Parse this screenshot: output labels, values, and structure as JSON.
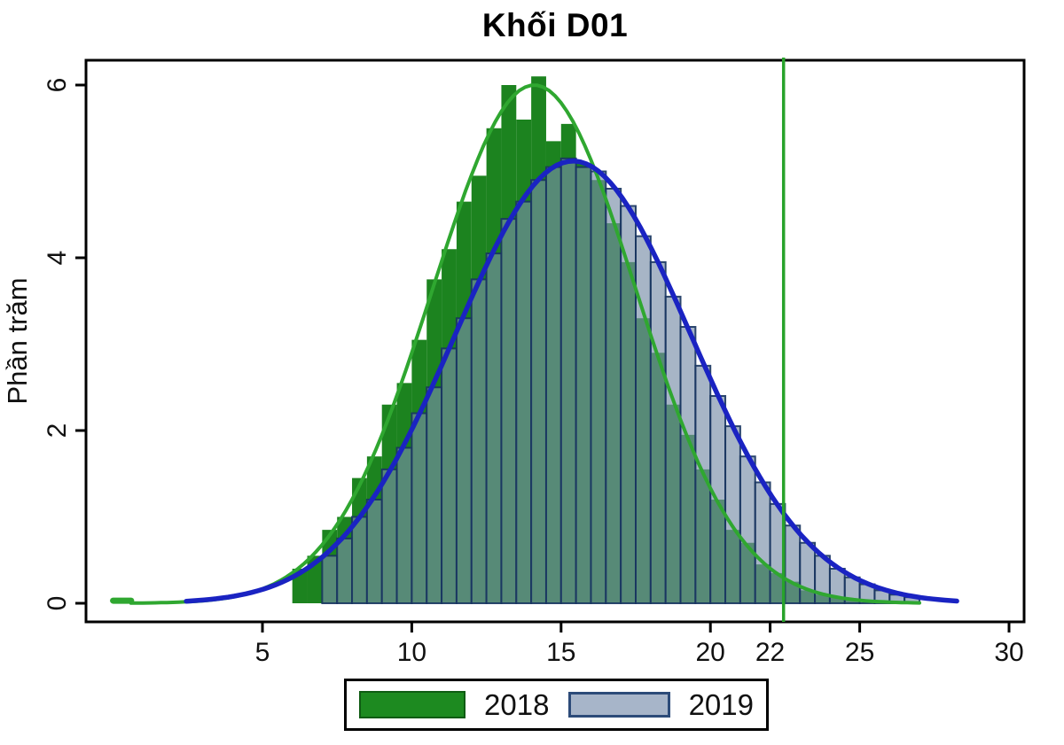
{
  "title": "Khối D01",
  "y_axis": {
    "label": "Phần trăm",
    "ticks": [
      0,
      2,
      4,
      6
    ]
  },
  "x_axis": {
    "ticks": [
      5,
      10,
      15,
      20,
      22,
      25,
      30
    ]
  },
  "reference_line": {
    "x": 22.45,
    "color": "#28a32b"
  },
  "legend": {
    "items": [
      {
        "label": "2018",
        "swatch_fill": "#1d8a20",
        "swatch_border": "#0f5c13"
      },
      {
        "label": "2019",
        "swatch_fill": "#a7b5c9",
        "swatch_border": "#2c4b79"
      }
    ]
  },
  "colors": {
    "hist_2018_fill": "#1c831f",
    "hist_2019_fill": "rgba(120,142,168,0.65)",
    "hist_2019_stroke": "rgba(23,52,95,0.9)",
    "curve_2018": "#2fa730",
    "curve_2019": "#1a23c2",
    "axis": "#000000",
    "text": "#111111"
  },
  "chart_data": {
    "type": "bar",
    "subtype": "overlaid-histograms-with-normal-fits",
    "title": "Khối D01",
    "xlabel": "",
    "ylabel": "Phần trăm",
    "xlim": [
      -0.9,
      30.5
    ],
    "ylim": [
      0,
      6.29
    ],
    "bin_width": 0.5,
    "legend_position": "bottom",
    "grid": false,
    "series": [
      {
        "name": "2018",
        "bins": [
          [
            0.0,
            0.05
          ],
          [
            6.0,
            0.4
          ],
          [
            6.5,
            0.55
          ],
          [
            7.0,
            0.85
          ],
          [
            7.5,
            1.0
          ],
          [
            8.0,
            1.45
          ],
          [
            8.5,
            1.7
          ],
          [
            9.0,
            2.3
          ],
          [
            9.5,
            2.55
          ],
          [
            10.0,
            3.05
          ],
          [
            10.5,
            3.75
          ],
          [
            11.0,
            4.1
          ],
          [
            11.5,
            4.65
          ],
          [
            12.0,
            4.95
          ],
          [
            12.5,
            5.5
          ],
          [
            13.0,
            6.0
          ],
          [
            13.5,
            5.6
          ],
          [
            14.0,
            6.1
          ],
          [
            14.5,
            5.35
          ],
          [
            15.0,
            5.55
          ],
          [
            15.5,
            5.1
          ],
          [
            16.0,
            4.9
          ],
          [
            16.5,
            4.4
          ],
          [
            17.0,
            3.95
          ],
          [
            17.5,
            3.3
          ],
          [
            18.0,
            2.9
          ],
          [
            18.5,
            2.3
          ],
          [
            19.0,
            1.95
          ],
          [
            19.5,
            1.55
          ],
          [
            20.0,
            1.2
          ],
          [
            20.5,
            0.85
          ],
          [
            21.0,
            0.7
          ],
          [
            21.5,
            0.45
          ],
          [
            22.0,
            0.35
          ],
          [
            22.5,
            0.25
          ],
          [
            23.0,
            0.15
          ],
          [
            23.5,
            0.1
          ],
          [
            24.0,
            0.07
          ],
          [
            24.5,
            0.05
          ]
        ]
      },
      {
        "name": "2019",
        "bins": [
          [
            7.0,
            0.55
          ],
          [
            7.5,
            0.75
          ],
          [
            8.0,
            1.0
          ],
          [
            8.5,
            1.2
          ],
          [
            9.0,
            1.55
          ],
          [
            9.5,
            1.8
          ],
          [
            10.0,
            2.2
          ],
          [
            10.5,
            2.5
          ],
          [
            11.0,
            2.95
          ],
          [
            11.5,
            3.3
          ],
          [
            12.0,
            3.75
          ],
          [
            12.5,
            4.05
          ],
          [
            13.0,
            4.45
          ],
          [
            13.5,
            4.65
          ],
          [
            14.0,
            4.9
          ],
          [
            14.5,
            5.05
          ],
          [
            15.0,
            5.15
          ],
          [
            15.5,
            5.05
          ],
          [
            16.0,
            5.0
          ],
          [
            16.5,
            4.8
          ],
          [
            17.0,
            4.6
          ],
          [
            17.5,
            4.25
          ],
          [
            18.0,
            3.95
          ],
          [
            18.5,
            3.55
          ],
          [
            19.0,
            3.2
          ],
          [
            19.5,
            2.75
          ],
          [
            20.0,
            2.4
          ],
          [
            20.5,
            2.05
          ],
          [
            21.0,
            1.7
          ],
          [
            21.5,
            1.4
          ],
          [
            22.0,
            1.15
          ],
          [
            22.5,
            0.9
          ],
          [
            23.0,
            0.7
          ],
          [
            23.5,
            0.55
          ],
          [
            24.0,
            0.4
          ],
          [
            24.5,
            0.3
          ],
          [
            25.0,
            0.22
          ],
          [
            25.5,
            0.15
          ],
          [
            26.0,
            0.1
          ],
          [
            26.5,
            0.07
          ]
        ]
      }
    ],
    "fit_curves": [
      {
        "series": "2018",
        "type": "normal",
        "mean": 14.1,
        "sd": 3.4,
        "peak_pct": 6.0,
        "range": [
          0.6,
          27.0
        ]
      },
      {
        "series": "2019",
        "type": "normal",
        "mean": 15.4,
        "sd": 3.95,
        "peak_pct": 5.12,
        "range": [
          2.45,
          28.4
        ]
      }
    ],
    "left_stub": {
      "x1": 0.0,
      "x2": 0.6,
      "h": 0.03
    },
    "reference_line_x": 22.45
  }
}
